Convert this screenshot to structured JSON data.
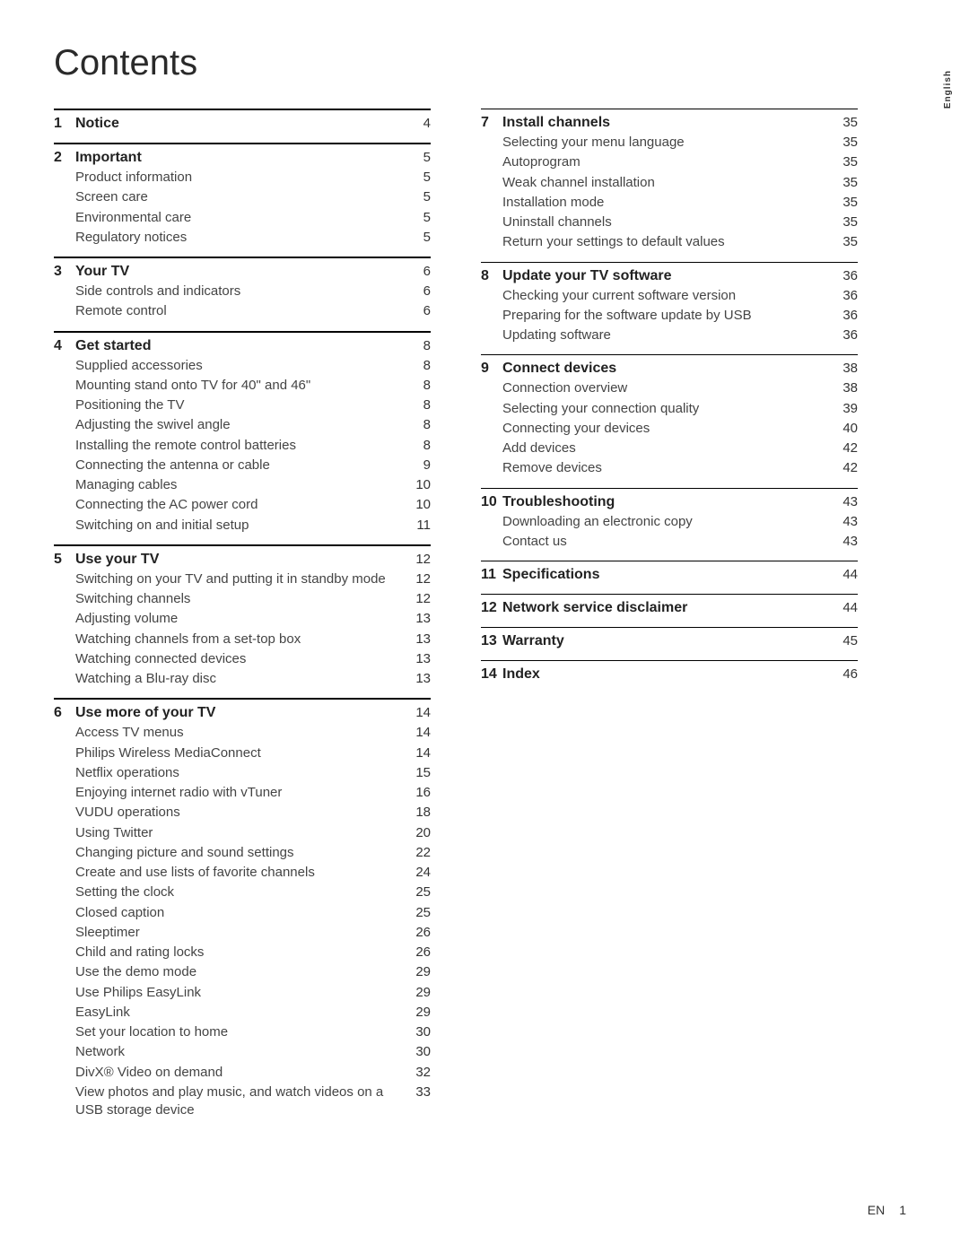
{
  "title": "Contents",
  "side_tab": "English",
  "footer": {
    "lang": "EN",
    "page": "1"
  },
  "columns": [
    {
      "sections": [
        {
          "num": "1",
          "title": "Notice",
          "page": "4",
          "entries": []
        },
        {
          "num": "2",
          "title": "Important",
          "page": "5",
          "entries": [
            {
              "title": "Product information",
              "page": "5"
            },
            {
              "title": "Screen care",
              "page": "5"
            },
            {
              "title": "Environmental care",
              "page": "5"
            },
            {
              "title": "Regulatory notices",
              "page": "5"
            }
          ]
        },
        {
          "num": "3",
          "title": "Your TV",
          "page": "6",
          "entries": [
            {
              "title": "Side controls and indicators",
              "page": "6"
            },
            {
              "title": "Remote control",
              "page": "6"
            }
          ]
        },
        {
          "num": "4",
          "title": "Get started",
          "page": "8",
          "entries": [
            {
              "title": "Supplied accessories",
              "page": "8"
            },
            {
              "title": "Mounting stand onto TV for 40\" and 46\"",
              "page": "8"
            },
            {
              "title": "Positioning the TV",
              "page": "8"
            },
            {
              "title": "Adjusting the swivel angle",
              "page": "8"
            },
            {
              "title": "Installing the remote control batteries",
              "page": "8"
            },
            {
              "title": "Connecting the antenna or cable",
              "page": "9"
            },
            {
              "title": "Managing cables",
              "page": "10"
            },
            {
              "title": "Connecting the AC power cord",
              "page": "10"
            },
            {
              "title": "Switching on and initial setup",
              "page": "11"
            }
          ]
        },
        {
          "num": "5",
          "title": "Use your TV",
          "page": "12",
          "entries": [
            {
              "title": "Switching on your TV and putting it in standby mode",
              "page": "12"
            },
            {
              "title": "Switching channels",
              "page": "12"
            },
            {
              "title": "Adjusting volume",
              "page": "13"
            },
            {
              "title": "Watching channels from a set-top box",
              "page": "13"
            },
            {
              "title": "Watching connected devices",
              "page": "13"
            },
            {
              "title": "Watching a Blu-ray disc",
              "page": "13"
            }
          ]
        },
        {
          "num": "6",
          "title": "Use more of your TV",
          "page": "14",
          "entries": [
            {
              "title": "Access TV menus",
              "page": "14"
            },
            {
              "title": "Philips Wireless MediaConnect",
              "page": "14"
            },
            {
              "title": "Netflix operations",
              "page": "15"
            },
            {
              "title": "Enjoying internet radio with vTuner",
              "page": "16"
            },
            {
              "title": "VUDU operations",
              "page": "18"
            },
            {
              "title": "Using Twitter",
              "page": "20"
            },
            {
              "title": "Changing picture and sound settings",
              "page": "22"
            },
            {
              "title": "Create and use lists of favorite channels",
              "page": "24"
            },
            {
              "title": "Setting the clock",
              "page": "25"
            },
            {
              "title": "Closed caption",
              "page": "25"
            },
            {
              "title": "Sleeptimer",
              "page": "26"
            },
            {
              "title": "Child and rating locks",
              "page": "26"
            },
            {
              "title": "Use the demo mode",
              "page": "29"
            },
            {
              "title": "Use Philips EasyLink",
              "page": "29"
            },
            {
              "title": "EasyLink",
              "page": "29"
            },
            {
              "title": "Set your location to home",
              "page": "30"
            },
            {
              "title": "Network",
              "page": "30"
            },
            {
              "title": "DivX® Video on demand",
              "page": "32"
            },
            {
              "title": "View photos and play music, and watch videos on a USB storage device",
              "page": "33"
            }
          ]
        }
      ]
    },
    {
      "sections": [
        {
          "num": "7",
          "title": "Install channels",
          "page": "35",
          "thin": true,
          "entries": [
            {
              "title": "Selecting your menu language",
              "page": "35"
            },
            {
              "title": "Autoprogram",
              "page": "35"
            },
            {
              "title": "Weak channel installation",
              "page": "35"
            },
            {
              "title": "Installation mode",
              "page": "35"
            },
            {
              "title": "Uninstall channels",
              "page": "35"
            },
            {
              "title": "Return your settings to default values",
              "page": "35"
            }
          ]
        },
        {
          "num": "8",
          "title": "Update your TV software",
          "page": "36",
          "thin": true,
          "entries": [
            {
              "title": "Checking your current software version",
              "page": "36"
            },
            {
              "title": "Preparing for the software update by USB",
              "page": "36"
            },
            {
              "title": "Updating software",
              "page": "36"
            }
          ]
        },
        {
          "num": "9",
          "title": "Connect devices",
          "page": "38",
          "thin": true,
          "entries": [
            {
              "title": "Connection overview",
              "page": "38"
            },
            {
              "title": "Selecting your connection quality",
              "page": "39"
            },
            {
              "title": "Connecting your devices",
              "page": "40"
            },
            {
              "title": "Add devices",
              "page": "42"
            },
            {
              "title": "Remove devices",
              "page": "42"
            }
          ]
        },
        {
          "num": "10",
          "title": "Troubleshooting",
          "page": "43",
          "thin": true,
          "entries": [
            {
              "title": "Downloading an electronic copy",
              "page": "43"
            },
            {
              "title": "Contact us",
              "page": "43"
            }
          ]
        },
        {
          "num": "11",
          "title": "Specifications",
          "page": "44",
          "thin": true,
          "entries": []
        },
        {
          "num": "12",
          "title": "Network service disclaimer",
          "page": "44",
          "thin": true,
          "entries": []
        },
        {
          "num": "13",
          "title": "Warranty",
          "page": "45",
          "thin": true,
          "entries": []
        },
        {
          "num": "14",
          "title": "Index",
          "page": "46",
          "thin": true,
          "entries": []
        }
      ]
    }
  ]
}
